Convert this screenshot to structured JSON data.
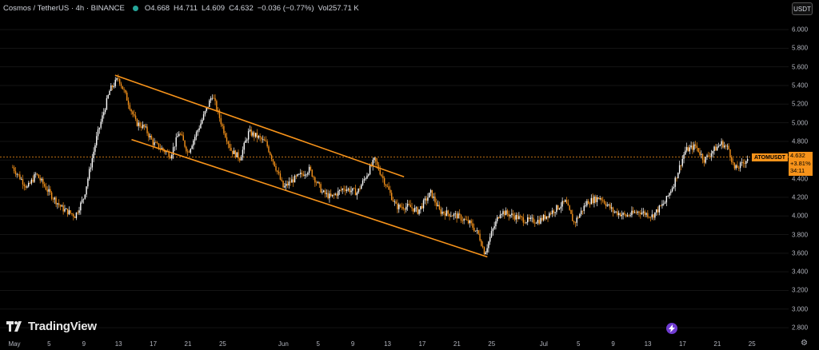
{
  "header": {
    "title": "Cosmos / TetherUS · 4h · BINANCE",
    "open_label": "O",
    "open": "4.668",
    "high_label": "H",
    "high": "4.711",
    "low_label": "L",
    "low": "4.609",
    "close_label": "C",
    "close": "4.632",
    "change": "−0.036 (−0.77%)",
    "vol_label": "Vol",
    "vol": "257.71 K"
  },
  "unit_button": "USDT",
  "last_price": {
    "symbol": "ATOMUSDT",
    "price": "4.632",
    "change_pct": "+3.81%",
    "countdown": "34:11"
  },
  "brand": "TradingView",
  "colors": {
    "background": "#000000",
    "up": "#ffffff",
    "down": "#f7931a",
    "channel": "#f7931a",
    "price_line": "#f7931a"
  },
  "chart_data": {
    "type": "candlestick",
    "y_ticks": [
      "6.000",
      "5.800",
      "5.600",
      "5.400",
      "5.200",
      "5.000",
      "4.800",
      "4.600",
      "4.400",
      "4.200",
      "4.000",
      "3.800",
      "3.600",
      "3.400",
      "3.200",
      "3.000",
      "2.800"
    ],
    "ylim": [
      2.7,
      6.15
    ],
    "x_ticks": [
      "May",
      "5",
      "9",
      "13",
      "17",
      "21",
      "25",
      "Jun",
      "5",
      "9",
      "13",
      "17",
      "21",
      "25",
      "Jul",
      "5",
      "9",
      "13",
      "17",
      "21",
      "25"
    ],
    "x_tick_days": [
      1,
      5,
      9,
      13,
      17,
      21,
      25,
      32,
      36,
      40,
      44,
      48,
      52,
      56,
      62,
      66,
      70,
      74,
      78,
      82,
      86
    ],
    "xlim": [
      1,
      92
    ],
    "last_close": 4.632,
    "keypoints": [
      {
        "day": 0.8,
        "price": 4.52
      },
      {
        "day": 2.5,
        "price": 4.3
      },
      {
        "day": 3.5,
        "price": 4.45
      },
      {
        "day": 5,
        "price": 4.25
      },
      {
        "day": 6.5,
        "price": 4.08
      },
      {
        "day": 8,
        "price": 4.0
      },
      {
        "day": 9,
        "price": 4.2
      },
      {
        "day": 10.5,
        "price": 4.85
      },
      {
        "day": 12,
        "price": 5.35
      },
      {
        "day": 13,
        "price": 5.48
      },
      {
        "day": 14,
        "price": 5.25
      },
      {
        "day": 15,
        "price": 5.0
      },
      {
        "day": 16,
        "price": 4.95
      },
      {
        "day": 17,
        "price": 4.78
      },
      {
        "day": 18,
        "price": 4.72
      },
      {
        "day": 19,
        "price": 4.65
      },
      {
        "day": 20,
        "price": 4.9
      },
      {
        "day": 21,
        "price": 4.68
      },
      {
        "day": 22.5,
        "price": 5.0
      },
      {
        "day": 23.8,
        "price": 5.3
      },
      {
        "day": 25,
        "price": 4.95
      },
      {
        "day": 26,
        "price": 4.7
      },
      {
        "day": 27,
        "price": 4.62
      },
      {
        "day": 28,
        "price": 4.9
      },
      {
        "day": 29,
        "price": 4.85
      },
      {
        "day": 30,
        "price": 4.78
      },
      {
        "day": 31,
        "price": 4.55
      },
      {
        "day": 32,
        "price": 4.3
      },
      {
        "day": 33,
        "price": 4.38
      },
      {
        "day": 35,
        "price": 4.5
      },
      {
        "day": 36.5,
        "price": 4.25
      },
      {
        "day": 37.5,
        "price": 4.2
      },
      {
        "day": 39,
        "price": 4.3
      },
      {
        "day": 40.5,
        "price": 4.25
      },
      {
        "day": 42.5,
        "price": 4.6
      },
      {
        "day": 44,
        "price": 4.3
      },
      {
        "day": 45,
        "price": 4.1
      },
      {
        "day": 46.5,
        "price": 4.1
      },
      {
        "day": 47.5,
        "price": 4.05
      },
      {
        "day": 49,
        "price": 4.25
      },
      {
        "day": 50,
        "price": 4.05
      },
      {
        "day": 52,
        "price": 4.0
      },
      {
        "day": 53.5,
        "price": 3.92
      },
      {
        "day": 54.5,
        "price": 3.8
      },
      {
        "day": 55.2,
        "price": 3.6
      },
      {
        "day": 56,
        "price": 3.82
      },
      {
        "day": 57,
        "price": 4.05
      },
      {
        "day": 58.5,
        "price": 4.0
      },
      {
        "day": 60,
        "price": 3.95
      },
      {
        "day": 61.5,
        "price": 3.95
      },
      {
        "day": 63,
        "price": 4.05
      },
      {
        "day": 64.5,
        "price": 4.15
      },
      {
        "day": 65.5,
        "price": 3.92
      },
      {
        "day": 67,
        "price": 4.15
      },
      {
        "day": 68.5,
        "price": 4.2
      },
      {
        "day": 70,
        "price": 4.05
      },
      {
        "day": 71.5,
        "price": 4.0
      },
      {
        "day": 73,
        "price": 4.05
      },
      {
        "day": 74.5,
        "price": 4.0
      },
      {
        "day": 76,
        "price": 4.15
      },
      {
        "day": 77,
        "price": 4.35
      },
      {
        "day": 78.3,
        "price": 4.7
      },
      {
        "day": 79.5,
        "price": 4.75
      },
      {
        "day": 80.5,
        "price": 4.6
      },
      {
        "day": 81.5,
        "price": 4.7
      },
      {
        "day": 82.5,
        "price": 4.78
      },
      {
        "day": 83.3,
        "price": 4.72
      },
      {
        "day": 84,
        "price": 4.5
      },
      {
        "day": 84.8,
        "price": 4.55
      },
      {
        "day": 85.6,
        "price": 4.632
      }
    ],
    "channel_lines": [
      {
        "from": {
          "day": 12.6,
          "price": 5.51
        },
        "to": {
          "day": 45.9,
          "price": 4.42
        }
      },
      {
        "from": {
          "day": 14.5,
          "price": 4.82
        },
        "to": {
          "day": 55.5,
          "price": 3.56
        }
      }
    ]
  }
}
